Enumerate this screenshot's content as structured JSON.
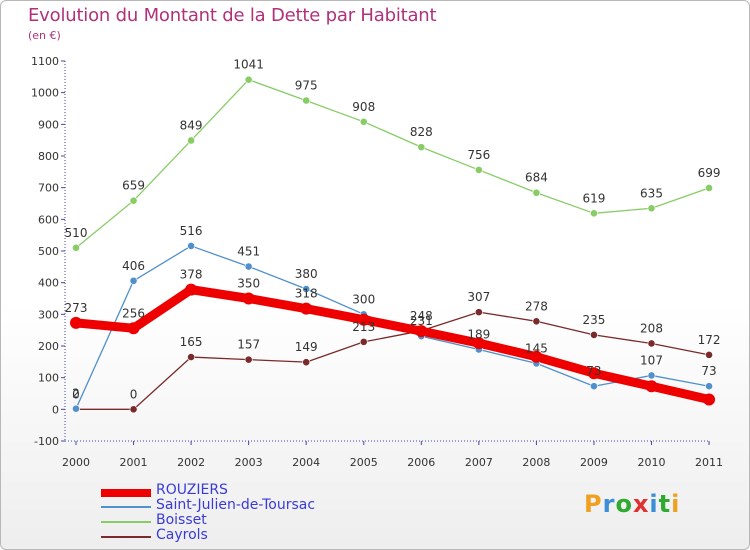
{
  "title": "Evolution du Montant de la Dette par Habitant",
  "subtitle": "(en €)",
  "brand": {
    "letters": [
      "P",
      "r",
      "o",
      "x",
      "i",
      "t",
      "i"
    ],
    "colors": [
      "#f0a020",
      "#3a8fd8",
      "#2eaa2e",
      "#e03030",
      "#3a8fd8",
      "#2eaa2e",
      "#f0a020"
    ]
  },
  "chart_data": {
    "type": "line",
    "title": "Evolution du Montant de la Dette par Habitant",
    "subtitle": "(en €)",
    "categories": [
      "2000",
      "2001",
      "2002",
      "2003",
      "2004",
      "2005",
      "2006",
      "2007",
      "2008",
      "2009",
      "2010",
      "2011"
    ],
    "ylim": [
      -100,
      1100
    ],
    "yticks": [
      -100,
      0,
      100,
      200,
      300,
      400,
      500,
      600,
      700,
      800,
      900,
      1000,
      1100
    ],
    "grid": false,
    "legend_position": "bottom-left",
    "series": [
      {
        "name": "ROUZIERS",
        "color": "#ee0000",
        "values": [
          273,
          256,
          378,
          350,
          318,
          283,
          247,
          209,
          166,
          114,
          73,
          31
        ],
        "labels": [
          "273",
          "256",
          "378",
          "350",
          "318",
          "",
          "",
          "",
          "",
          "",
          "",
          ""
        ],
        "thick": true
      },
      {
        "name": "Saint-Julien-de-Toursac",
        "color": "#5090cc",
        "values": [
          2,
          406,
          516,
          451,
          380,
          300,
          231,
          189,
          145,
          73,
          107,
          73
        ],
        "labels": [
          "2",
          "406",
          "516",
          "451",
          "380",
          "300",
          "231",
          "189",
          "145",
          "73",
          "107",
          "73"
        ],
        "thick": false
      },
      {
        "name": "Boisset",
        "color": "#88cc66",
        "values": [
          510,
          659,
          849,
          1041,
          975,
          908,
          828,
          756,
          684,
          619,
          635,
          699
        ],
        "labels": [
          "510",
          "659",
          "849",
          "1041",
          "975",
          "908",
          "828",
          "756",
          "684",
          "619",
          "635",
          "699"
        ],
        "thick": false
      },
      {
        "name": "Cayrols",
        "color": "#7a2a2a",
        "values": [
          0,
          0,
          165,
          157,
          149,
          213,
          248,
          307,
          278,
          235,
          208,
          172
        ],
        "labels": [
          "0",
          "0",
          "165",
          "157",
          "149",
          "213",
          "248",
          "307",
          "278",
          "235",
          "208",
          "172"
        ],
        "thick": false
      }
    ]
  }
}
